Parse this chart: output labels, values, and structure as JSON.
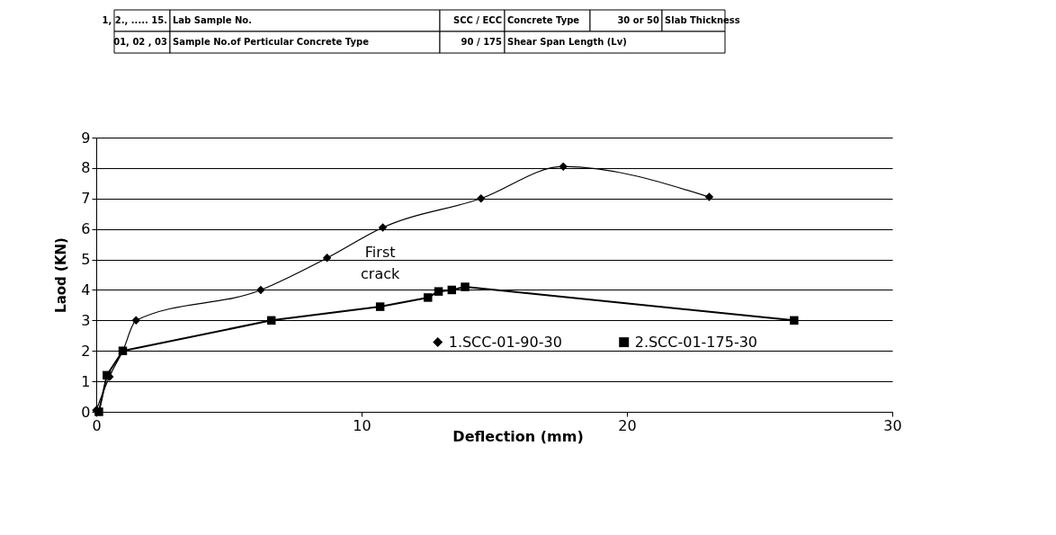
{
  "chart_data": {
    "type": "line",
    "xlabel": "Deflection (mm)",
    "ylabel": "Laod (KN)",
    "series": [
      {
        "name": "1.SCC-01-90-30",
        "color": "#000000",
        "marker": "diamond",
        "x": [
          0,
          0.5,
          1.0,
          1.5,
          6.2,
          8.7,
          10.8,
          14.5,
          17.6,
          23.1
        ],
        "values": [
          0.05,
          1.15,
          2.0,
          3.0,
          4.0,
          5.05,
          6.05,
          7.0,
          8.05,
          7.05
        ]
      },
      {
        "name": "2.SCC-01-175-30",
        "color": "#000000",
        "marker": "square",
        "x": [
          0.1,
          0.4,
          1.0,
          6.6,
          10.7,
          12.5,
          12.9,
          13.4,
          13.9,
          26.3
        ],
        "values": [
          0.0,
          1.2,
          2.0,
          3.0,
          3.45,
          3.75,
          3.95,
          4.0,
          4.1,
          3.0
        ]
      }
    ],
    "xlim": [
      0,
      30
    ],
    "xticks": [
      0,
      10,
      20,
      30
    ],
    "ylim": [
      0,
      9
    ],
    "yticks": [
      0,
      1,
      2,
      3,
      4,
      5,
      6,
      7,
      8,
      9
    ],
    "grid": "y",
    "legend": "bottom",
    "annotations": [
      {
        "text": "First crack",
        "x": 10.7,
        "y": 3.45
      },
      "1, 2., ..... 15.",
      "Lab Sample No.",
      "SCC / ECC",
      "Concrete Type",
      "30 or 50",
      "Slab Thickness",
      "01, 02 , 03",
      "Sample No.of Perticular Concrete Type",
      "90 / 175",
      "Shear Span Length (Lv)"
    ]
  }
}
